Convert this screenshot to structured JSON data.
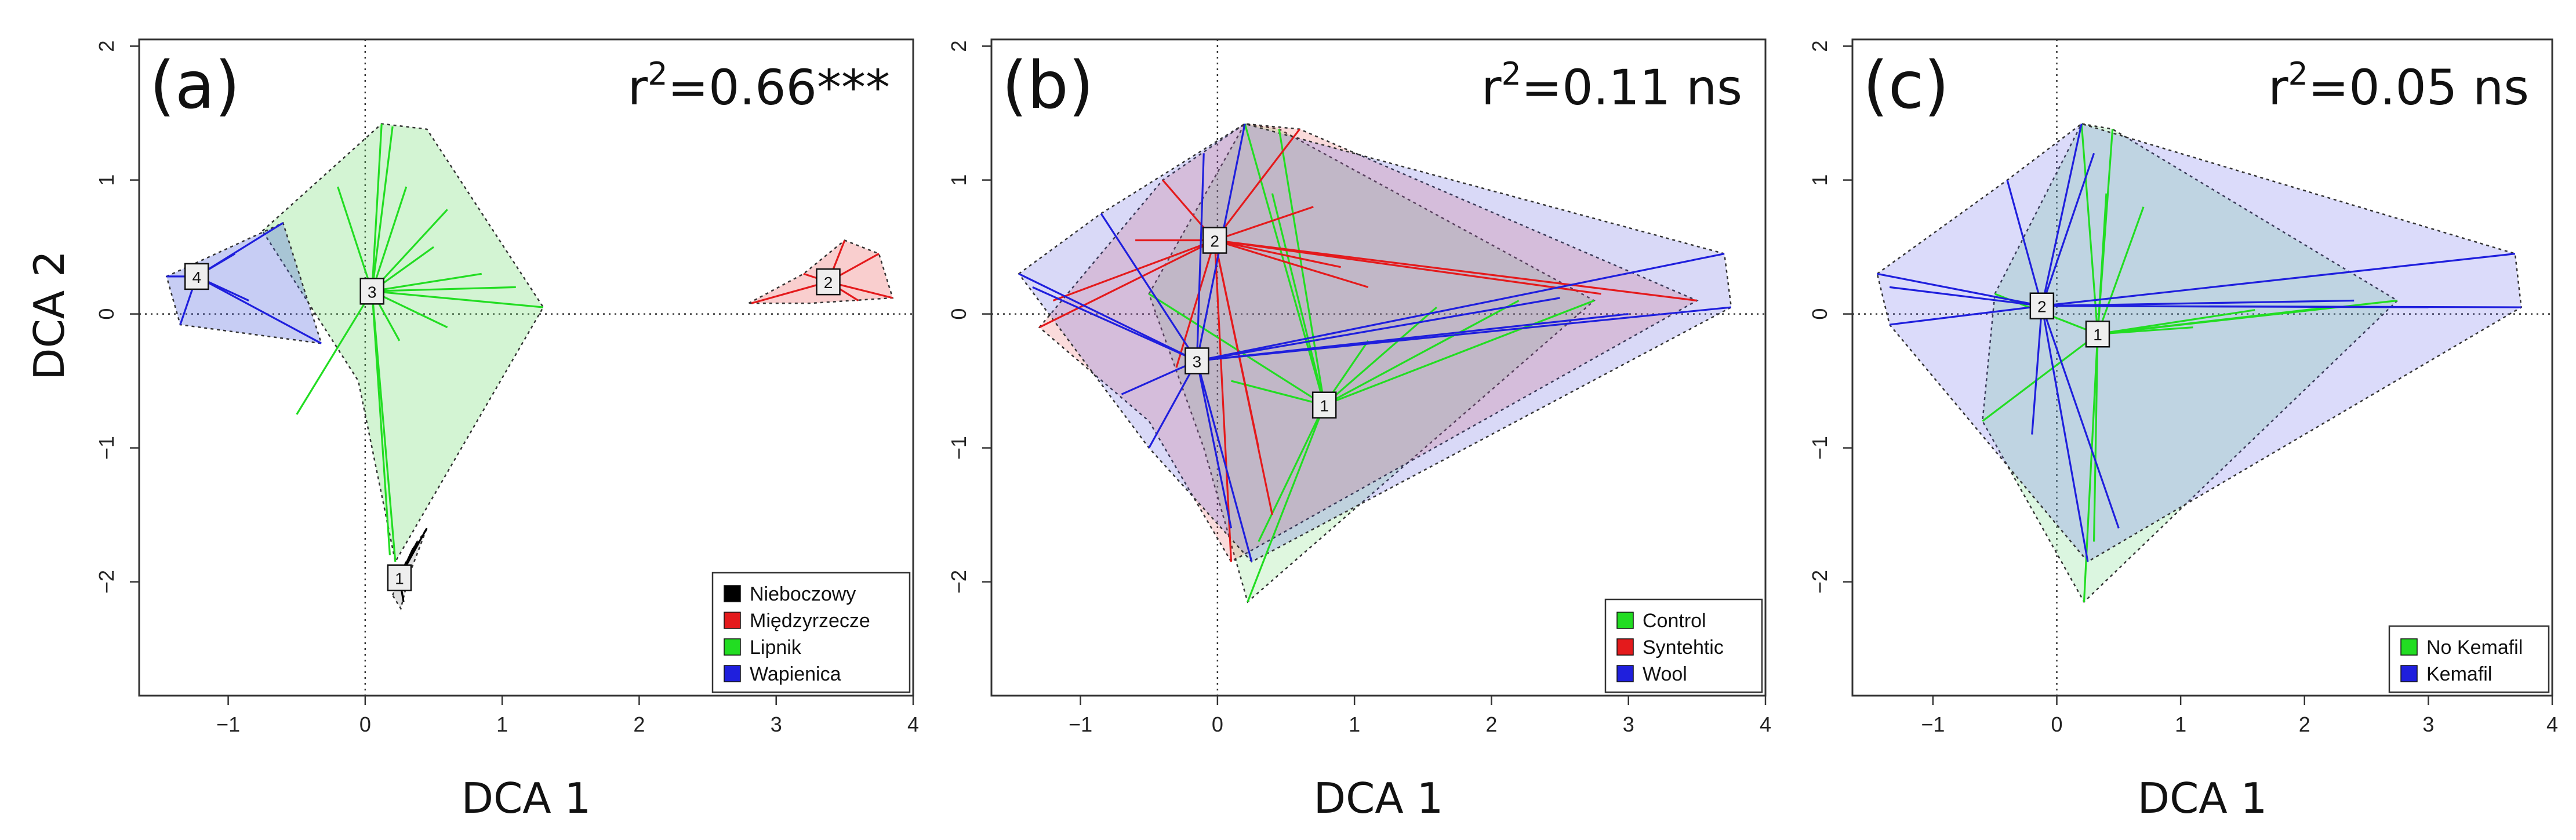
{
  "figure": {
    "panels": [
      "a",
      "b",
      "c"
    ]
  },
  "chart_data": [
    {
      "type": "scatter",
      "panel_label": "(a)",
      "r2_prefix": "r",
      "r2_sup": "2",
      "r2_value": "=0.66***",
      "xlabel": "DCA 1",
      "ylabel": "DCA 2",
      "xlim": [
        -1.65,
        4.0
      ],
      "ylim": [
        -2.85,
        2.05
      ],
      "xticks": [
        -1,
        0,
        1,
        2,
        3,
        4
      ],
      "yticks": [
        -2,
        -1,
        0,
        1,
        2
      ],
      "legend_position": "bottom-right",
      "legend": [
        {
          "label": "Nieboczowy",
          "color": "#000000"
        },
        {
          "label": "Międzyrzecze",
          "color": "#e41a1c"
        },
        {
          "label": "Lipnik",
          "color": "#22dd22"
        },
        {
          "label": "Wapienica",
          "color": "#1f1fdd"
        }
      ],
      "groups": [
        {
          "name": "Nieboczowy",
          "color": "#000000",
          "fill": "rgba(80,80,80,0.18)",
          "centroid_label": "1",
          "centroid": [
            0.25,
            -1.97
          ],
          "hull": [
            [
              0.2,
              -2.1
            ],
            [
              0.35,
              -1.75
            ],
            [
              0.45,
              -1.6
            ],
            [
              0.32,
              -1.95
            ],
            [
              0.26,
              -2.2
            ]
          ],
          "points": [
            [
              0.35,
              -1.75
            ],
            [
              0.45,
              -1.6
            ],
            [
              0.3,
              -1.85
            ],
            [
              0.22,
              -2.05
            ],
            [
              0.28,
              -2.15
            ],
            [
              0.38,
              -1.7
            ]
          ]
        },
        {
          "name": "Międzyrzecze",
          "color": "#e41a1c",
          "fill": "rgba(230,60,60,0.25)",
          "centroid_label": "2",
          "centroid": [
            3.38,
            0.24
          ],
          "hull": [
            [
              2.8,
              0.08
            ],
            [
              3.2,
              0.3
            ],
            [
              3.5,
              0.55
            ],
            [
              3.75,
              0.45
            ],
            [
              3.85,
              0.12
            ],
            [
              3.25,
              0.08
            ]
          ],
          "points": [
            [
              2.82,
              0.08
            ],
            [
              3.5,
              0.55
            ],
            [
              3.75,
              0.45
            ],
            [
              3.85,
              0.12
            ],
            [
              3.2,
              0.3
            ],
            [
              3.6,
              0.1
            ]
          ]
        },
        {
          "name": "Lipnik",
          "color": "#22dd22",
          "fill": "rgba(110,220,110,0.30)",
          "centroid_label": "3",
          "centroid": [
            0.05,
            0.17
          ],
          "hull": [
            [
              -0.75,
              0.62
            ],
            [
              0.12,
              1.42
            ],
            [
              0.45,
              1.38
            ],
            [
              1.3,
              0.05
            ],
            [
              0.22,
              -1.85
            ],
            [
              -0.05,
              -0.5
            ]
          ],
          "points": [
            [
              0.12,
              1.42
            ],
            [
              0.2,
              1.4
            ],
            [
              0.3,
              0.95
            ],
            [
              0.6,
              0.78
            ],
            [
              1.3,
              0.05
            ],
            [
              1.1,
              0.2
            ],
            [
              0.6,
              -0.1
            ],
            [
              0.22,
              -1.85
            ],
            [
              0.18,
              -1.8
            ],
            [
              -0.5,
              -0.75
            ],
            [
              0.5,
              0.5
            ],
            [
              0.85,
              0.3
            ],
            [
              -0.2,
              0.95
            ],
            [
              0.25,
              -0.2
            ]
          ]
        },
        {
          "name": "Wapienica",
          "color": "#1f1fdd",
          "fill": "rgba(70,90,220,0.30)",
          "centroid_label": "4",
          "centroid": [
            -1.23,
            0.28
          ],
          "hull": [
            [
              -1.45,
              0.28
            ],
            [
              -0.6,
              0.68
            ],
            [
              -0.32,
              -0.22
            ],
            [
              -1.35,
              -0.08
            ]
          ],
          "points": [
            [
              -1.45,
              0.28
            ],
            [
              -0.6,
              0.68
            ],
            [
              -0.32,
              -0.22
            ],
            [
              -1.35,
              -0.08
            ],
            [
              -0.95,
              0.45
            ],
            [
              -0.85,
              0.1
            ]
          ]
        }
      ]
    },
    {
      "type": "scatter",
      "panel_label": "(b)",
      "r2_prefix": "r",
      "r2_sup": "2",
      "r2_value": "=0.11 ns",
      "xlabel": "DCA 1",
      "ylabel": "",
      "xlim": [
        -1.65,
        4.0
      ],
      "ylim": [
        -2.85,
        2.05
      ],
      "xticks": [
        -1,
        0,
        1,
        2,
        3,
        4
      ],
      "yticks": [
        -2,
        -1,
        0,
        1,
        2
      ],
      "legend_position": "bottom-right",
      "legend": [
        {
          "label": "Control",
          "color": "#22dd22"
        },
        {
          "label": "Syntehtic",
          "color": "#e41a1c"
        },
        {
          "label": "Wool",
          "color": "#1f1fdd"
        }
      ],
      "groups": [
        {
          "name": "Control",
          "color": "#22dd22",
          "fill": "rgba(110,220,110,0.22)",
          "centroid_label": "1",
          "centroid": [
            0.78,
            -0.68
          ],
          "hull": [
            [
              -0.5,
              0.15
            ],
            [
              0.2,
              1.42
            ],
            [
              0.45,
              1.38
            ],
            [
              2.75,
              0.1
            ],
            [
              0.22,
              -2.15
            ],
            [
              -0.1,
              -1.0
            ]
          ],
          "points": [
            [
              0.2,
              1.42
            ],
            [
              0.45,
              1.38
            ],
            [
              2.75,
              0.1
            ],
            [
              0.22,
              -2.15
            ],
            [
              -0.5,
              0.15
            ],
            [
              0.4,
              0.9
            ],
            [
              1.1,
              -0.2
            ],
            [
              2.2,
              0.1
            ],
            [
              0.3,
              -1.7
            ],
            [
              0.1,
              -0.5
            ],
            [
              1.6,
              0.05
            ]
          ]
        },
        {
          "name": "Syntehtic",
          "color": "#e41a1c",
          "fill": "rgba(230,90,90,0.22)",
          "centroid_label": "2",
          "centroid": [
            -0.02,
            0.55
          ],
          "hull": [
            [
              -1.3,
              -0.1
            ],
            [
              -0.4,
              1.0
            ],
            [
              0.2,
              1.42
            ],
            [
              0.6,
              1.38
            ],
            [
              3.5,
              0.1
            ],
            [
              0.1,
              -1.85
            ],
            [
              -0.5,
              -0.8
            ]
          ],
          "points": [
            [
              -1.3,
              -0.1
            ],
            [
              -1.2,
              0.1
            ],
            [
              -0.4,
              1.0
            ],
            [
              0.6,
              1.38
            ],
            [
              0.7,
              0.8
            ],
            [
              3.5,
              0.1
            ],
            [
              2.8,
              0.15
            ],
            [
              0.1,
              -1.85
            ],
            [
              0.4,
              -1.5
            ],
            [
              -0.3,
              -0.4
            ],
            [
              1.1,
              0.2
            ],
            [
              0.3,
              -1.0
            ],
            [
              0.9,
              0.35
            ],
            [
              -0.6,
              0.55
            ]
          ]
        },
        {
          "name": "Wool",
          "color": "#1f1fdd",
          "fill": "rgba(80,80,220,0.22)",
          "centroid_label": "3",
          "centroid": [
            -0.15,
            -0.35
          ],
          "hull": [
            [
              -1.45,
              0.3
            ],
            [
              -0.85,
              0.75
            ],
            [
              0.2,
              1.42
            ],
            [
              3.7,
              0.45
            ],
            [
              3.75,
              0.05
            ],
            [
              0.25,
              -1.85
            ],
            [
              -0.5,
              -1.0
            ]
          ],
          "points": [
            [
              -1.45,
              0.3
            ],
            [
              -1.35,
              0.2
            ],
            [
              -0.85,
              0.75
            ],
            [
              -0.1,
              1.2
            ],
            [
              0.2,
              1.42
            ],
            [
              3.7,
              0.45
            ],
            [
              3.75,
              0.05
            ],
            [
              3.0,
              0.0
            ],
            [
              0.25,
              -1.85
            ],
            [
              -0.5,
              -1.0
            ],
            [
              0.1,
              -1.6
            ],
            [
              -0.7,
              -0.6
            ],
            [
              2.5,
              0.12
            ]
          ]
        }
      ]
    },
    {
      "type": "scatter",
      "panel_label": "(c)",
      "r2_prefix": "r",
      "r2_sup": "2",
      "r2_value": "=0.05 ns",
      "xlabel": "DCA 1",
      "ylabel": "",
      "xlim": [
        -1.65,
        4.0
      ],
      "ylim": [
        -2.85,
        2.05
      ],
      "xticks": [
        -1,
        0,
        1,
        2,
        3,
        4
      ],
      "yticks": [
        -2,
        -1,
        0,
        1,
        2
      ],
      "legend_position": "bottom-right",
      "legend": [
        {
          "label": "No Kemafil",
          "color": "#22dd22"
        },
        {
          "label": "Kemafil",
          "color": "#1f1fdd"
        }
      ],
      "groups": [
        {
          "name": "No Kemafil",
          "color": "#22dd22",
          "fill": "rgba(110,220,130,0.25)",
          "centroid_label": "1",
          "centroid": [
            0.33,
            -0.15
          ],
          "hull": [
            [
              -0.5,
              0.15
            ],
            [
              0.2,
              1.42
            ],
            [
              0.45,
              1.38
            ],
            [
              2.75,
              0.1
            ],
            [
              0.22,
              -2.15
            ],
            [
              -0.6,
              -0.8
            ]
          ],
          "points": [
            [
              0.2,
              1.42
            ],
            [
              0.45,
              1.38
            ],
            [
              2.75,
              0.1
            ],
            [
              2.2,
              0.05
            ],
            [
              0.22,
              -2.15
            ],
            [
              -0.5,
              0.15
            ],
            [
              0.4,
              0.9
            ],
            [
              1.1,
              -0.1
            ],
            [
              0.3,
              -1.7
            ],
            [
              -0.6,
              -0.8
            ],
            [
              0.7,
              0.8
            ],
            [
              1.6,
              0.03
            ]
          ]
        },
        {
          "name": "Kemafil",
          "color": "#1f1fdd",
          "fill": "rgba(90,90,230,0.22)",
          "centroid_label": "2",
          "centroid": [
            -0.12,
            0.06
          ],
          "hull": [
            [
              -1.45,
              0.3
            ],
            [
              -0.4,
              1.0
            ],
            [
              0.2,
              1.42
            ],
            [
              3.7,
              0.45
            ],
            [
              3.75,
              0.05
            ],
            [
              0.25,
              -1.85
            ],
            [
              -1.35,
              -0.08
            ]
          ],
          "points": [
            [
              -1.45,
              0.3
            ],
            [
              -1.35,
              0.2
            ],
            [
              -1.35,
              -0.08
            ],
            [
              -0.4,
              1.0
            ],
            [
              0.2,
              1.42
            ],
            [
              0.3,
              1.2
            ],
            [
              3.7,
              0.45
            ],
            [
              3.75,
              0.05
            ],
            [
              3.0,
              0.05
            ],
            [
              0.25,
              -1.85
            ],
            [
              0.5,
              -1.6
            ],
            [
              -0.2,
              -0.9
            ],
            [
              2.4,
              0.1
            ]
          ]
        }
      ]
    }
  ]
}
